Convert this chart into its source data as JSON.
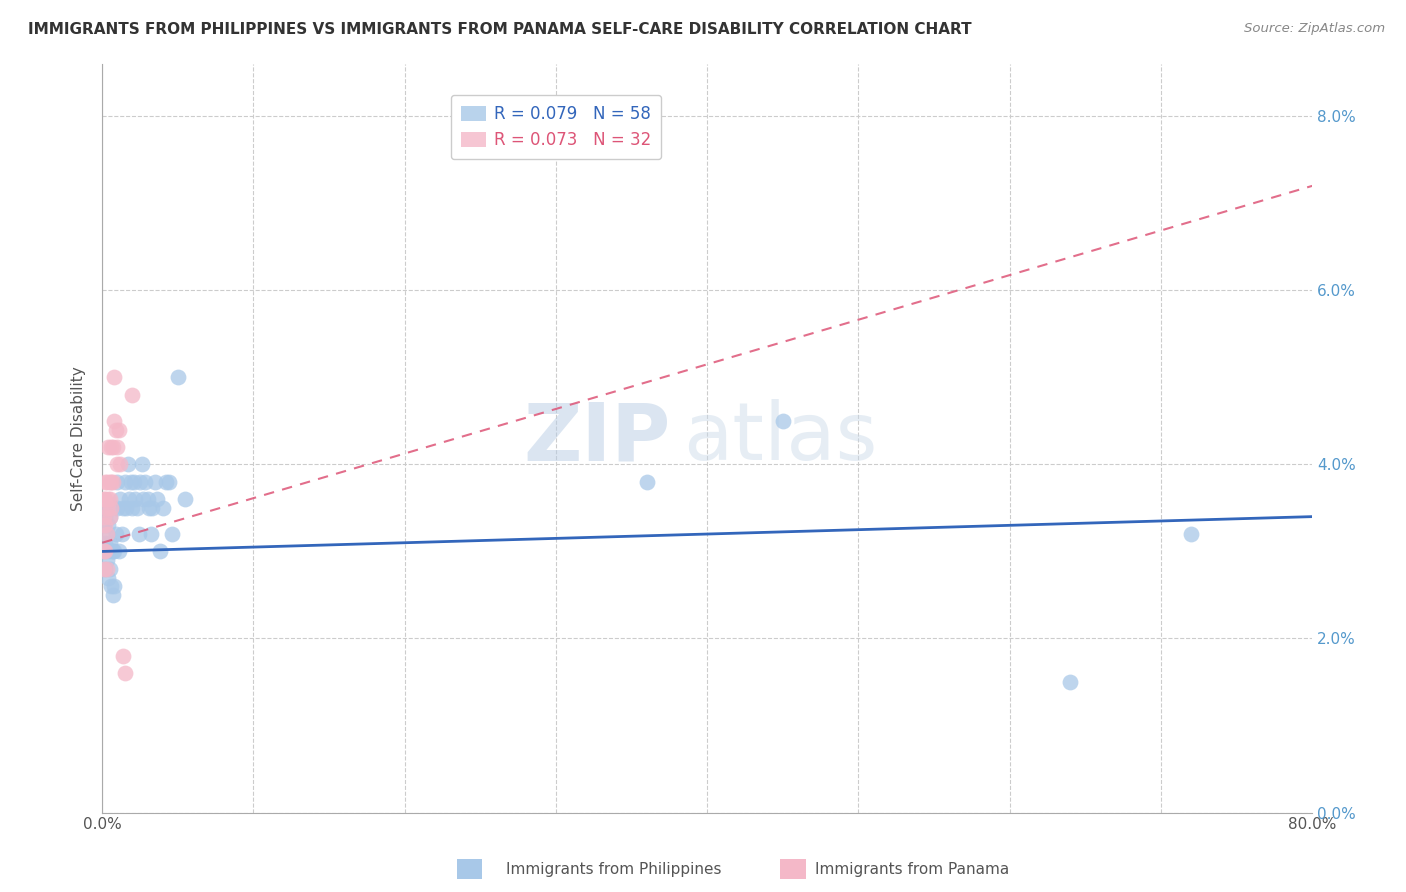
{
  "title": "IMMIGRANTS FROM PHILIPPINES VS IMMIGRANTS FROM PANAMA SELF-CARE DISABILITY CORRELATION CHART",
  "source": "Source: ZipAtlas.com",
  "ylabel": "Self-Care Disability",
  "legend_philippines": "Immigrants from Philippines",
  "legend_panama": "Immigrants from Panama",
  "R_philippines": 0.079,
  "N_philippines": 58,
  "R_panama": 0.073,
  "N_panama": 32,
  "philippines_color": "#a8c8e8",
  "panama_color": "#f4b8c8",
  "philippines_line_color": "#3366bb",
  "panama_line_color": "#dd5577",
  "watermark_zip": "ZIP",
  "watermark_atlas": "atlas",
  "xlim": [
    0.0,
    0.8
  ],
  "ylim": [
    0.0,
    0.086
  ],
  "yticks": [
    0.0,
    0.02,
    0.04,
    0.06,
    0.08
  ],
  "philippines_x": [
    0.001,
    0.001,
    0.002,
    0.002,
    0.002,
    0.003,
    0.003,
    0.003,
    0.004,
    0.004,
    0.004,
    0.005,
    0.005,
    0.005,
    0.006,
    0.006,
    0.007,
    0.007,
    0.008,
    0.008,
    0.009,
    0.01,
    0.01,
    0.011,
    0.012,
    0.013,
    0.014,
    0.015,
    0.016,
    0.017,
    0.018,
    0.019,
    0.02,
    0.021,
    0.022,
    0.023,
    0.024,
    0.025,
    0.026,
    0.027,
    0.028,
    0.03,
    0.031,
    0.032,
    0.033,
    0.035,
    0.036,
    0.038,
    0.04,
    0.042,
    0.044,
    0.046,
    0.05,
    0.055,
    0.36,
    0.45,
    0.64,
    0.72
  ],
  "philippines_y": [
    0.03,
    0.033,
    0.028,
    0.031,
    0.034,
    0.029,
    0.032,
    0.035,
    0.027,
    0.03,
    0.033,
    0.028,
    0.031,
    0.034,
    0.026,
    0.03,
    0.025,
    0.03,
    0.026,
    0.03,
    0.032,
    0.038,
    0.035,
    0.03,
    0.036,
    0.032,
    0.035,
    0.038,
    0.035,
    0.04,
    0.036,
    0.038,
    0.035,
    0.038,
    0.036,
    0.035,
    0.032,
    0.038,
    0.04,
    0.036,
    0.038,
    0.036,
    0.035,
    0.032,
    0.035,
    0.038,
    0.036,
    0.03,
    0.035,
    0.038,
    0.038,
    0.032,
    0.05,
    0.036,
    0.038,
    0.045,
    0.015,
    0.032
  ],
  "panama_x": [
    0.001,
    0.001,
    0.001,
    0.001,
    0.002,
    0.002,
    0.002,
    0.002,
    0.003,
    0.003,
    0.003,
    0.003,
    0.004,
    0.004,
    0.005,
    0.005,
    0.005,
    0.006,
    0.006,
    0.006,
    0.007,
    0.007,
    0.008,
    0.008,
    0.009,
    0.01,
    0.01,
    0.011,
    0.012,
    0.014,
    0.015,
    0.02
  ],
  "panama_y": [
    0.028,
    0.03,
    0.034,
    0.036,
    0.03,
    0.033,
    0.036,
    0.038,
    0.028,
    0.032,
    0.035,
    0.038,
    0.036,
    0.042,
    0.034,
    0.036,
    0.038,
    0.035,
    0.038,
    0.042,
    0.038,
    0.042,
    0.045,
    0.05,
    0.044,
    0.04,
    0.042,
    0.044,
    0.04,
    0.018,
    0.016,
    0.048
  ],
  "phil_line_x0": 0.0,
  "phil_line_x1": 0.8,
  "phil_line_y0": 0.03,
  "phil_line_y1": 0.034,
  "pan_line_x0": 0.0,
  "pan_line_x1": 0.8,
  "pan_line_y0": 0.031,
  "pan_line_y1": 0.072
}
